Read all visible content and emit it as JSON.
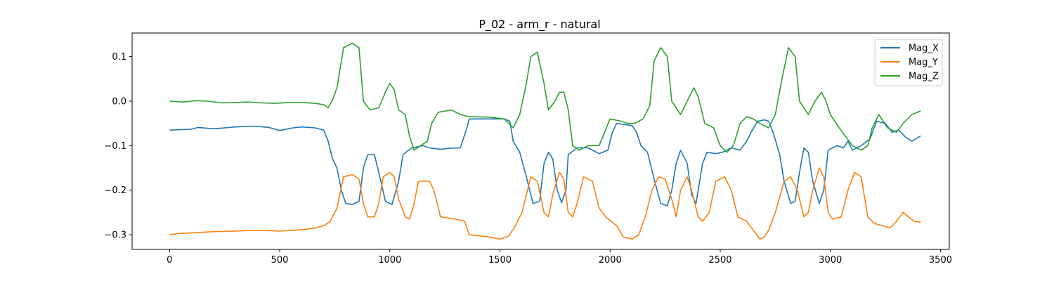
{
  "chart_data": {
    "type": "line",
    "title": "P_02 - arm_r - natural",
    "xlabel": "",
    "ylabel": "",
    "xlim": [
      -170,
      3540
    ],
    "ylim": [
      -0.333,
      0.153
    ],
    "xticks": [
      0,
      500,
      1000,
      1500,
      2000,
      2500,
      3000,
      3500
    ],
    "xtick_labels": [
      "0",
      "500",
      "1000",
      "1500",
      "2000",
      "2500",
      "3000",
      "3500"
    ],
    "yticks": [
      0.1,
      0.0,
      -0.1,
      -0.2,
      -0.3
    ],
    "ytick_labels": [
      "0.1",
      "0.0",
      "−0.1",
      "−0.2",
      "−0.3"
    ],
    "grid": false,
    "legend": {
      "position": "upper right"
    },
    "series": [
      {
        "name": "Mag_X",
        "color": "#1f77b4",
        "points": [
          [
            0,
            -0.065
          ],
          [
            100,
            -0.063
          ],
          [
            130,
            -0.059
          ],
          [
            200,
            -0.062
          ],
          [
            300,
            -0.058
          ],
          [
            380,
            -0.056
          ],
          [
            450,
            -0.059
          ],
          [
            500,
            -0.066
          ],
          [
            560,
            -0.06
          ],
          [
            600,
            -0.058
          ],
          [
            660,
            -0.06
          ],
          [
            700,
            -0.065
          ],
          [
            720,
            -0.09
          ],
          [
            740,
            -0.13
          ],
          [
            760,
            -0.15
          ],
          [
            780,
            -0.2
          ],
          [
            800,
            -0.23
          ],
          [
            830,
            -0.232
          ],
          [
            860,
            -0.225
          ],
          [
            880,
            -0.15
          ],
          [
            900,
            -0.12
          ],
          [
            930,
            -0.12
          ],
          [
            950,
            -0.16
          ],
          [
            980,
            -0.225
          ],
          [
            1010,
            -0.232
          ],
          [
            1040,
            -0.18
          ],
          [
            1060,
            -0.12
          ],
          [
            1100,
            -0.105
          ],
          [
            1150,
            -0.1
          ],
          [
            1180,
            -0.105
          ],
          [
            1230,
            -0.108
          ],
          [
            1270,
            -0.106
          ],
          [
            1320,
            -0.105
          ],
          [
            1350,
            -0.06
          ],
          [
            1360,
            -0.04
          ],
          [
            1450,
            -0.04
          ],
          [
            1520,
            -0.04
          ],
          [
            1545,
            -0.045
          ],
          [
            1560,
            -0.09
          ],
          [
            1590,
            -0.115
          ],
          [
            1620,
            -0.17
          ],
          [
            1650,
            -0.23
          ],
          [
            1680,
            -0.225
          ],
          [
            1700,
            -0.14
          ],
          [
            1720,
            -0.115
          ],
          [
            1740,
            -0.13
          ],
          [
            1760,
            -0.2
          ],
          [
            1780,
            -0.228
          ],
          [
            1800,
            -0.2
          ],
          [
            1810,
            -0.12
          ],
          [
            1850,
            -0.105
          ],
          [
            1900,
            -0.105
          ],
          [
            1950,
            -0.118
          ],
          [
            1990,
            -0.11
          ],
          [
            2010,
            -0.07
          ],
          [
            2030,
            -0.05
          ],
          [
            2100,
            -0.055
          ],
          [
            2120,
            -0.07
          ],
          [
            2140,
            -0.1
          ],
          [
            2170,
            -0.115
          ],
          [
            2200,
            -0.175
          ],
          [
            2230,
            -0.23
          ],
          [
            2260,
            -0.235
          ],
          [
            2280,
            -0.2
          ],
          [
            2300,
            -0.14
          ],
          [
            2320,
            -0.11
          ],
          [
            2350,
            -0.14
          ],
          [
            2370,
            -0.21
          ],
          [
            2390,
            -0.23
          ],
          [
            2400,
            -0.2
          ],
          [
            2420,
            -0.14
          ],
          [
            2440,
            -0.115
          ],
          [
            2480,
            -0.118
          ],
          [
            2510,
            -0.115
          ],
          [
            2550,
            -0.105
          ],
          [
            2590,
            -0.11
          ],
          [
            2620,
            -0.09
          ],
          [
            2640,
            -0.07
          ],
          [
            2670,
            -0.045
          ],
          [
            2700,
            -0.042
          ],
          [
            2720,
            -0.045
          ],
          [
            2740,
            -0.07
          ],
          [
            2770,
            -0.12
          ],
          [
            2790,
            -0.18
          ],
          [
            2820,
            -0.23
          ],
          [
            2840,
            -0.225
          ],
          [
            2860,
            -0.16
          ],
          [
            2880,
            -0.105
          ],
          [
            2900,
            -0.115
          ],
          [
            2920,
            -0.18
          ],
          [
            2950,
            -0.23
          ],
          [
            2970,
            -0.2
          ],
          [
            2990,
            -0.11
          ],
          [
            3030,
            -0.1
          ],
          [
            3060,
            -0.105
          ],
          [
            3080,
            -0.09
          ],
          [
            3100,
            -0.11
          ],
          [
            3140,
            -0.1
          ],
          [
            3180,
            -0.085
          ],
          [
            3210,
            -0.045
          ],
          [
            3250,
            -0.05
          ],
          [
            3280,
            -0.07
          ],
          [
            3310,
            -0.065
          ],
          [
            3340,
            -0.08
          ],
          [
            3370,
            -0.09
          ],
          [
            3410,
            -0.078
          ]
        ]
      },
      {
        "name": "Mag_Y",
        "color": "#ff7f0e",
        "points": [
          [
            0,
            -0.3
          ],
          [
            50,
            -0.297
          ],
          [
            100,
            -0.296
          ],
          [
            200,
            -0.293
          ],
          [
            300,
            -0.292
          ],
          [
            400,
            -0.29
          ],
          [
            500,
            -0.292
          ],
          [
            600,
            -0.289
          ],
          [
            660,
            -0.285
          ],
          [
            700,
            -0.28
          ],
          [
            730,
            -0.27
          ],
          [
            760,
            -0.24
          ],
          [
            790,
            -0.17
          ],
          [
            830,
            -0.165
          ],
          [
            860,
            -0.175
          ],
          [
            880,
            -0.23
          ],
          [
            900,
            -0.26
          ],
          [
            930,
            -0.26
          ],
          [
            950,
            -0.23
          ],
          [
            970,
            -0.17
          ],
          [
            1000,
            -0.16
          ],
          [
            1020,
            -0.17
          ],
          [
            1040,
            -0.22
          ],
          [
            1070,
            -0.26
          ],
          [
            1090,
            -0.265
          ],
          [
            1110,
            -0.23
          ],
          [
            1130,
            -0.18
          ],
          [
            1180,
            -0.18
          ],
          [
            1200,
            -0.2
          ],
          [
            1230,
            -0.26
          ],
          [
            1300,
            -0.265
          ],
          [
            1340,
            -0.27
          ],
          [
            1360,
            -0.3
          ],
          [
            1450,
            -0.305
          ],
          [
            1500,
            -0.31
          ],
          [
            1540,
            -0.303
          ],
          [
            1570,
            -0.28
          ],
          [
            1600,
            -0.25
          ],
          [
            1640,
            -0.17
          ],
          [
            1670,
            -0.18
          ],
          [
            1700,
            -0.25
          ],
          [
            1720,
            -0.26
          ],
          [
            1740,
            -0.21
          ],
          [
            1770,
            -0.16
          ],
          [
            1790,
            -0.175
          ],
          [
            1810,
            -0.25
          ],
          [
            1830,
            -0.26
          ],
          [
            1850,
            -0.23
          ],
          [
            1880,
            -0.17
          ],
          [
            1920,
            -0.18
          ],
          [
            1950,
            -0.24
          ],
          [
            1980,
            -0.26
          ],
          [
            2030,
            -0.28
          ],
          [
            2060,
            -0.305
          ],
          [
            2100,
            -0.31
          ],
          [
            2130,
            -0.3
          ],
          [
            2160,
            -0.26
          ],
          [
            2190,
            -0.2
          ],
          [
            2220,
            -0.17
          ],
          [
            2250,
            -0.175
          ],
          [
            2280,
            -0.22
          ],
          [
            2300,
            -0.26
          ],
          [
            2320,
            -0.2
          ],
          [
            2350,
            -0.17
          ],
          [
            2370,
            -0.2
          ],
          [
            2400,
            -0.26
          ],
          [
            2420,
            -0.27
          ],
          [
            2450,
            -0.25
          ],
          [
            2480,
            -0.18
          ],
          [
            2520,
            -0.17
          ],
          [
            2550,
            -0.2
          ],
          [
            2580,
            -0.26
          ],
          [
            2620,
            -0.27
          ],
          [
            2650,
            -0.29
          ],
          [
            2680,
            -0.31
          ],
          [
            2700,
            -0.305
          ],
          [
            2720,
            -0.29
          ],
          [
            2750,
            -0.25
          ],
          [
            2790,
            -0.18
          ],
          [
            2820,
            -0.17
          ],
          [
            2850,
            -0.2
          ],
          [
            2880,
            -0.26
          ],
          [
            2900,
            -0.25
          ],
          [
            2920,
            -0.2
          ],
          [
            2950,
            -0.15
          ],
          [
            2970,
            -0.17
          ],
          [
            2990,
            -0.25
          ],
          [
            3010,
            -0.265
          ],
          [
            3050,
            -0.26
          ],
          [
            3080,
            -0.2
          ],
          [
            3110,
            -0.16
          ],
          [
            3140,
            -0.17
          ],
          [
            3170,
            -0.26
          ],
          [
            3200,
            -0.275
          ],
          [
            3240,
            -0.28
          ],
          [
            3270,
            -0.285
          ],
          [
            3300,
            -0.27
          ],
          [
            3330,
            -0.25
          ],
          [
            3360,
            -0.262
          ],
          [
            3380,
            -0.27
          ],
          [
            3410,
            -0.272
          ]
        ]
      },
      {
        "name": "Mag_Z",
        "color": "#2ca02c",
        "points": [
          [
            0,
            0.0
          ],
          [
            60,
            -0.002
          ],
          [
            120,
            0.001
          ],
          [
            170,
            0.0
          ],
          [
            240,
            -0.004
          ],
          [
            300,
            -0.003
          ],
          [
            360,
            -0.002
          ],
          [
            420,
            -0.004
          ],
          [
            480,
            -0.005
          ],
          [
            540,
            -0.003
          ],
          [
            600,
            -0.003
          ],
          [
            660,
            -0.005
          ],
          [
            700,
            -0.008
          ],
          [
            720,
            -0.015
          ],
          [
            740,
            0.003
          ],
          [
            760,
            0.03
          ],
          [
            790,
            0.12
          ],
          [
            830,
            0.13
          ],
          [
            860,
            0.12
          ],
          [
            880,
            0.0
          ],
          [
            910,
            -0.02
          ],
          [
            950,
            -0.015
          ],
          [
            980,
            0.02
          ],
          [
            1000,
            0.04
          ],
          [
            1020,
            0.025
          ],
          [
            1040,
            -0.02
          ],
          [
            1070,
            -0.03
          ],
          [
            1090,
            -0.08
          ],
          [
            1110,
            -0.11
          ],
          [
            1140,
            -0.1
          ],
          [
            1170,
            -0.09
          ],
          [
            1190,
            -0.05
          ],
          [
            1220,
            -0.025
          ],
          [
            1280,
            -0.02
          ],
          [
            1320,
            -0.03
          ],
          [
            1360,
            -0.035
          ],
          [
            1450,
            -0.036
          ],
          [
            1520,
            -0.04
          ],
          [
            1560,
            -0.06
          ],
          [
            1590,
            -0.03
          ],
          [
            1620,
            0.04
          ],
          [
            1640,
            0.1
          ],
          [
            1670,
            0.11
          ],
          [
            1700,
            0.04
          ],
          [
            1720,
            -0.02
          ],
          [
            1750,
            0.0
          ],
          [
            1770,
            0.02
          ],
          [
            1790,
            0.02
          ],
          [
            1810,
            -0.02
          ],
          [
            1830,
            -0.1
          ],
          [
            1860,
            -0.11
          ],
          [
            1900,
            -0.1
          ],
          [
            1950,
            -0.1
          ],
          [
            2000,
            -0.04
          ],
          [
            2050,
            -0.045
          ],
          [
            2080,
            -0.05
          ],
          [
            2110,
            -0.05
          ],
          [
            2150,
            -0.04
          ],
          [
            2180,
            -0.01
          ],
          [
            2200,
            0.09
          ],
          [
            2230,
            0.12
          ],
          [
            2260,
            0.1
          ],
          [
            2280,
            0.0
          ],
          [
            2320,
            -0.03
          ],
          [
            2350,
            0.0
          ],
          [
            2380,
            0.03
          ],
          [
            2400,
            0.01
          ],
          [
            2430,
            -0.05
          ],
          [
            2470,
            -0.06
          ],
          [
            2500,
            -0.1
          ],
          [
            2530,
            -0.115
          ],
          [
            2560,
            -0.1
          ],
          [
            2590,
            -0.05
          ],
          [
            2620,
            -0.035
          ],
          [
            2650,
            -0.04
          ],
          [
            2680,
            -0.05
          ],
          [
            2720,
            -0.06
          ],
          [
            2750,
            -0.03
          ],
          [
            2780,
            0.05
          ],
          [
            2810,
            0.12
          ],
          [
            2840,
            0.1
          ],
          [
            2860,
            0.0
          ],
          [
            2900,
            -0.03
          ],
          [
            2930,
            0.0
          ],
          [
            2960,
            0.02
          ],
          [
            2980,
            0.0
          ],
          [
            3000,
            -0.03
          ],
          [
            3040,
            -0.06
          ],
          [
            3070,
            -0.08
          ],
          [
            3100,
            -0.1
          ],
          [
            3140,
            -0.11
          ],
          [
            3170,
            -0.1
          ],
          [
            3190,
            -0.06
          ],
          [
            3220,
            -0.03
          ],
          [
            3260,
            -0.06
          ],
          [
            3300,
            -0.07
          ],
          [
            3330,
            -0.05
          ],
          [
            3370,
            -0.03
          ],
          [
            3410,
            -0.022
          ]
        ]
      }
    ]
  }
}
